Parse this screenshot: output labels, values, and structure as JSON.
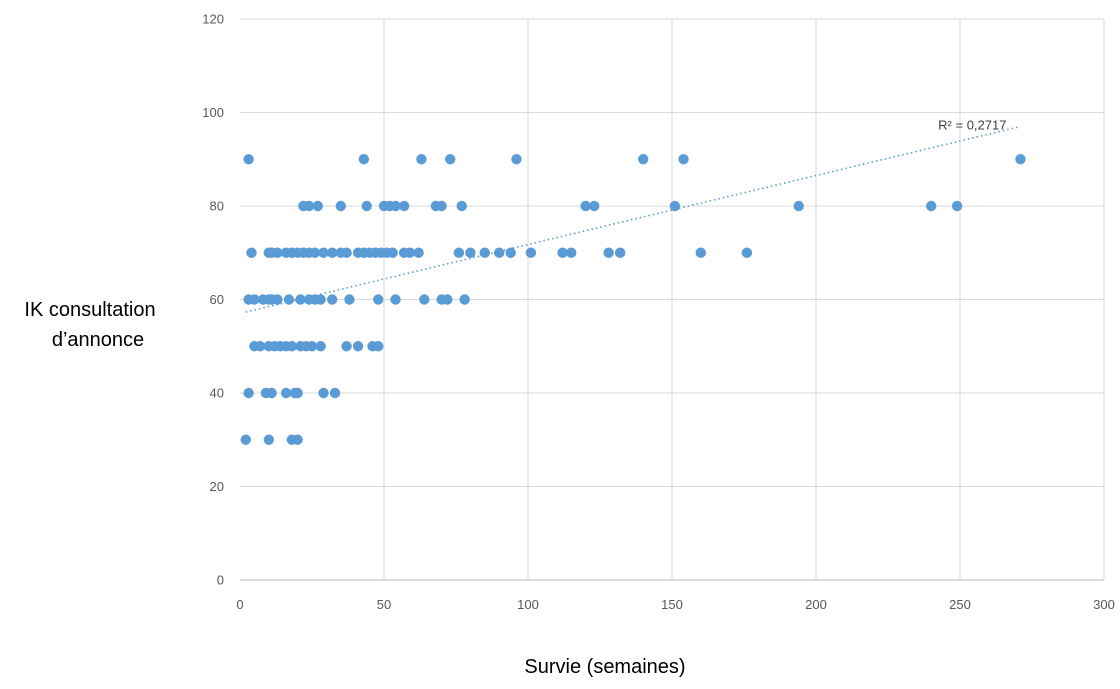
{
  "chart_data": {
    "type": "scatter",
    "title": "",
    "xlabel": "Survie (semaines)",
    "ylabel": [
      "IK consultation",
      "d’annonce"
    ],
    "xlim": [
      0,
      300
    ],
    "ylim": [
      0,
      120
    ],
    "xticks": [
      0,
      50,
      100,
      150,
      200,
      250,
      300
    ],
    "yticks": [
      0,
      20,
      40,
      60,
      80,
      100,
      120
    ],
    "grid": true,
    "legend": "none",
    "marker_color": "#5b9bd5",
    "grid_color": "#d9d9d9",
    "series": [
      {
        "points": [
          [
            3,
            90
          ],
          [
            43,
            90
          ],
          [
            63,
            90
          ],
          [
            73,
            90
          ],
          [
            96,
            90
          ],
          [
            140,
            90
          ],
          [
            154,
            90
          ],
          [
            271,
            90
          ],
          [
            22,
            80
          ],
          [
            24,
            80
          ],
          [
            27,
            80
          ],
          [
            35,
            80
          ],
          [
            44,
            80
          ],
          [
            50,
            80
          ],
          [
            52,
            80
          ],
          [
            54,
            80
          ],
          [
            57,
            80
          ],
          [
            68,
            80
          ],
          [
            70,
            80
          ],
          [
            77,
            80
          ],
          [
            120,
            80
          ],
          [
            123,
            80
          ],
          [
            151,
            80
          ],
          [
            194,
            80
          ],
          [
            240,
            80
          ],
          [
            249,
            80
          ],
          [
            4,
            70
          ],
          [
            10,
            70
          ],
          [
            11,
            70
          ],
          [
            13,
            70
          ],
          [
            16,
            70
          ],
          [
            18,
            70
          ],
          [
            20,
            70
          ],
          [
            22,
            70
          ],
          [
            24,
            70
          ],
          [
            26,
            70
          ],
          [
            29,
            70
          ],
          [
            32,
            70
          ],
          [
            35,
            70
          ],
          [
            37,
            70
          ],
          [
            41,
            70
          ],
          [
            43,
            70
          ],
          [
            45,
            70
          ],
          [
            47,
            70
          ],
          [
            49,
            70
          ],
          [
            51,
            70
          ],
          [
            53,
            70
          ],
          [
            57,
            70
          ],
          [
            59,
            70
          ],
          [
            62,
            70
          ],
          [
            76,
            70
          ],
          [
            80,
            70
          ],
          [
            85,
            70
          ],
          [
            90,
            70
          ],
          [
            94,
            70
          ],
          [
            101,
            70
          ],
          [
            112,
            70
          ],
          [
            115,
            70
          ],
          [
            128,
            70
          ],
          [
            132,
            70
          ],
          [
            160,
            70
          ],
          [
            176,
            70
          ],
          [
            3,
            60
          ],
          [
            5,
            60
          ],
          [
            8,
            60
          ],
          [
            10,
            60
          ],
          [
            11,
            60
          ],
          [
            13,
            60
          ],
          [
            17,
            60
          ],
          [
            21,
            60
          ],
          [
            24,
            60
          ],
          [
            26,
            60
          ],
          [
            28,
            60
          ],
          [
            32,
            60
          ],
          [
            38,
            60
          ],
          [
            48,
            60
          ],
          [
            54,
            60
          ],
          [
            64,
            60
          ],
          [
            70,
            60
          ],
          [
            72,
            60
          ],
          [
            78,
            60
          ],
          [
            5,
            50
          ],
          [
            7,
            50
          ],
          [
            10,
            50
          ],
          [
            12,
            50
          ],
          [
            14,
            50
          ],
          [
            16,
            50
          ],
          [
            18,
            50
          ],
          [
            21,
            50
          ],
          [
            23,
            50
          ],
          [
            25,
            50
          ],
          [
            28,
            50
          ],
          [
            37,
            50
          ],
          [
            41,
            50
          ],
          [
            46,
            50
          ],
          [
            48,
            50
          ],
          [
            3,
            40
          ],
          [
            9,
            40
          ],
          [
            11,
            40
          ],
          [
            16,
            40
          ],
          [
            19,
            40
          ],
          [
            20,
            40
          ],
          [
            29,
            40
          ],
          [
            33,
            40
          ],
          [
            2,
            30
          ],
          [
            10,
            30
          ],
          [
            18,
            30
          ],
          [
            20,
            30
          ]
        ]
      }
    ],
    "trendline": {
      "style": "dotted",
      "from": [
        2,
        57.3
      ],
      "to": [
        271,
        97
      ],
      "label": "R² = 0,2717"
    }
  }
}
